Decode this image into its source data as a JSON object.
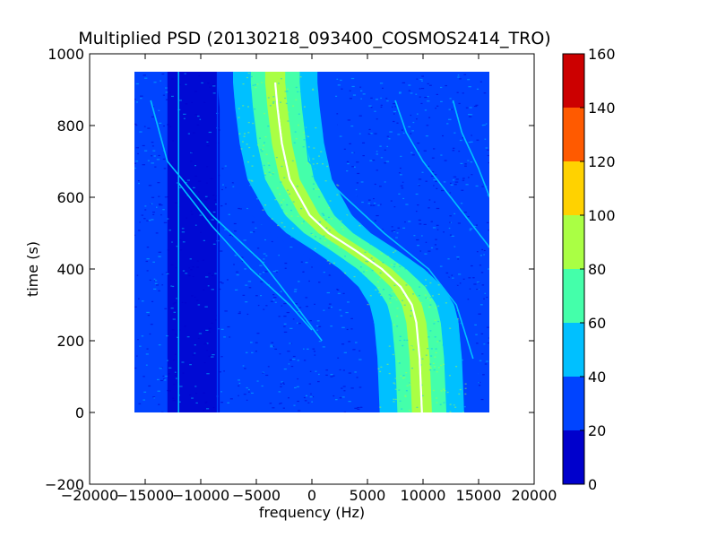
{
  "chart_data": {
    "type": "heatmap",
    "title": "Multiplied PSD (20130218_093400_COSMOS2414_TRO)",
    "xlabel": "frequency (Hz)",
    "ylabel": "time (s)",
    "xlim": [
      -20000,
      20000
    ],
    "ylim": [
      -200,
      1000
    ],
    "x_ticks": [
      -20000,
      -15000,
      -10000,
      -5000,
      0,
      5000,
      10000,
      15000,
      20000
    ],
    "x_tick_labels": [
      "−20000",
      "−15000",
      "−10000",
      "−5000",
      "0",
      "5000",
      "10000",
      "15000",
      "20000"
    ],
    "y_ticks": [
      -200,
      0,
      200,
      400,
      600,
      800,
      1000
    ],
    "y_tick_labels": [
      "−200",
      "0",
      "200",
      "400",
      "600",
      "800",
      "1000"
    ],
    "data_extent": {
      "x": [
        -16000,
        16000
      ],
      "y": [
        0,
        950
      ]
    },
    "background_level": 25,
    "colorbar": {
      "levels": [
        0,
        20,
        40,
        60,
        80,
        100,
        120,
        140,
        160
      ],
      "tick_labels": [
        "0",
        "20",
        "40",
        "60",
        "80",
        "100",
        "120",
        "140",
        "160"
      ],
      "colors": [
        "#0000cc",
        "#0044ff",
        "#00c0ff",
        "#44ffaa",
        "#aaff44",
        "#ffd200",
        "#ff5a00",
        "#cc0000"
      ]
    },
    "features": {
      "main_trace": {
        "points": [
          {
            "t": 920,
            "f": -3300
          },
          {
            "t": 850,
            "f": -3100
          },
          {
            "t": 750,
            "f": -2700
          },
          {
            "t": 650,
            "f": -2000
          },
          {
            "t": 550,
            "f": -200
          },
          {
            "t": 500,
            "f": 1500
          },
          {
            "t": 450,
            "f": 4000
          },
          {
            "t": 400,
            "f": 6300
          },
          {
            "t": 350,
            "f": 8000
          },
          {
            "t": 300,
            "f": 9000
          },
          {
            "t": 250,
            "f": 9400
          },
          {
            "t": 150,
            "f": 9700
          },
          {
            "t": 0,
            "f": 9900
          }
        ],
        "band_bins": [
          {
            "halfwidth": 5200,
            "level": 30
          },
          {
            "halfwidth": 3800,
            "level": 50
          },
          {
            "halfwidth": 2200,
            "level": 70
          },
          {
            "halfwidth": 900,
            "level": 90
          }
        ]
      },
      "vertical_lines": [
        {
          "f": -12000,
          "level": 45
        },
        {
          "f": -8500,
          "level": 30
        }
      ],
      "dark_bands": [
        {
          "f_min": -13000,
          "f_max": -8300,
          "level": 12
        }
      ],
      "secondary_traces": [
        {
          "level": 50,
          "points": [
            {
              "t": 870,
              "f": -14500
            },
            {
              "t": 700,
              "f": -13000
            },
            {
              "t": 550,
              "f": -9000
            },
            {
              "t": 420,
              "f": -4500
            },
            {
              "t": 300,
              "f": -1500
            },
            {
              "t": 200,
              "f": 900
            }
          ]
        },
        {
          "level": 45,
          "points": [
            {
              "t": 640,
              "f": -12000
            },
            {
              "t": 520,
              "f": -9000
            },
            {
              "t": 400,
              "f": -5500
            },
            {
              "t": 300,
              "f": -2000
            },
            {
              "t": 230,
              "f": 0
            }
          ]
        },
        {
          "level": 55,
          "points": [
            {
              "t": 820,
              "f": -700
            },
            {
              "t": 700,
              "f": -300
            },
            {
              "t": 600,
              "f": 3000
            },
            {
              "t": 500,
              "f": 6500
            },
            {
              "t": 400,
              "f": 10500
            },
            {
              "t": 300,
              "f": 13000
            },
            {
              "t": 150,
              "f": 14500
            }
          ]
        },
        {
          "level": 45,
          "points": [
            {
              "t": 870,
              "f": 7500
            },
            {
              "t": 780,
              "f": 8500
            },
            {
              "t": 700,
              "f": 10000
            },
            {
              "t": 600,
              "f": 12500
            },
            {
              "t": 520,
              "f": 14500
            },
            {
              "t": 460,
              "f": 16000
            }
          ]
        },
        {
          "level": 45,
          "points": [
            {
              "t": 870,
              "f": 12700
            },
            {
              "t": 780,
              "f": 13500
            },
            {
              "t": 680,
              "f": 15000
            },
            {
              "t": 600,
              "f": 16000
            }
          ]
        }
      ]
    }
  }
}
